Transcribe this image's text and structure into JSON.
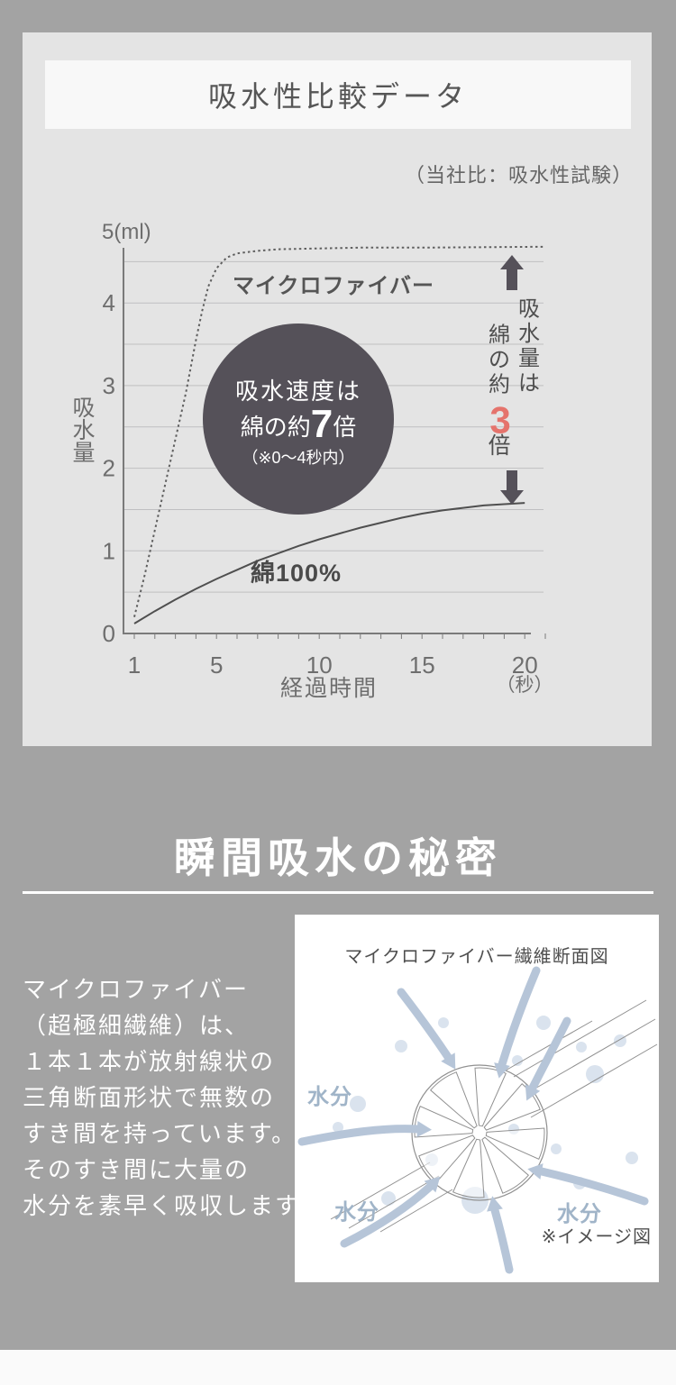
{
  "page": {
    "bg": "#a3a3a3",
    "panel_bg": "#e4e4e4",
    "card_bg": "#f8f8f8",
    "accent_red": "#e5736c",
    "dark_circle": "#555159",
    "water_blue": "#a0b4c8"
  },
  "section1": {
    "title": "吸水性比較データ",
    "note": "（当社比：吸水性試験）"
  },
  "chart_data": {
    "type": "line",
    "title": "吸水性比較データ",
    "subtitle": "（当社比：吸水性試験）",
    "xlabel": "経過時間",
    "xunit": "（秒）",
    "ylabel": "吸水量",
    "y_top_label": "5(ml)",
    "xlim": [
      1,
      20
    ],
    "ylim": [
      0,
      4.7
    ],
    "xticks": [
      1,
      5,
      10,
      15,
      20
    ],
    "yticks": [
      4,
      3,
      2,
      1,
      0
    ],
    "grid": {
      "on": true,
      "horizontal_step": 0.5,
      "grid_max": 4.5
    },
    "legend_position": "inline-labels",
    "series": [
      {
        "name": "マイクロファイバー",
        "style": "dotted",
        "points": [
          [
            1,
            0.2
          ],
          [
            1.5,
            0.7
          ],
          [
            2,
            1.25
          ],
          [
            2.5,
            1.8
          ],
          [
            3,
            2.35
          ],
          [
            3.5,
            2.9
          ],
          [
            4,
            3.55
          ],
          [
            4.3,
            3.9
          ],
          [
            4.6,
            4.2
          ],
          [
            5,
            4.42
          ],
          [
            5.5,
            4.55
          ],
          [
            6,
            4.6
          ],
          [
            7,
            4.63
          ],
          [
            8,
            4.65
          ],
          [
            10,
            4.66
          ],
          [
            12,
            4.67
          ],
          [
            15,
            4.67
          ],
          [
            18,
            4.675
          ],
          [
            21,
            4.68
          ]
        ]
      },
      {
        "name": "綿100%",
        "style": "solid",
        "points": [
          [
            1,
            0.12
          ],
          [
            2,
            0.27
          ],
          [
            3,
            0.41
          ],
          [
            4,
            0.54
          ],
          [
            5,
            0.66
          ],
          [
            6,
            0.77
          ],
          [
            7,
            0.88
          ],
          [
            8,
            0.97
          ],
          [
            9,
            1.06
          ],
          [
            10,
            1.14
          ],
          [
            11,
            1.21
          ],
          [
            12,
            1.28
          ],
          [
            13,
            1.34
          ],
          [
            14,
            1.4
          ],
          [
            15,
            1.45
          ],
          [
            16,
            1.49
          ],
          [
            17,
            1.52
          ],
          [
            18,
            1.55
          ],
          [
            19,
            1.565
          ],
          [
            20,
            1.58
          ]
        ]
      }
    ],
    "annotations": {
      "speed_circle": {
        "line1": "吸水速度は",
        "line2_pre": "綿の約",
        "line2_big": "7",
        "line2_post": "倍",
        "line3": "（※0〜4秒内）"
      },
      "amount_vertical": {
        "col_right": "吸水量は",
        "col_left": "綿の約",
        "big": "3",
        "suffix": "倍"
      }
    }
  },
  "section2": {
    "title": "瞬間吸水の秘密",
    "lines": [
      "マイクロファイバー",
      "（超極細繊維）は、",
      "１本１本が放射線状の",
      "三角断面形状で無数の",
      "すき間を持っています。",
      "そのすき間に大量の",
      "水分を素早く吸収します。"
    ],
    "diagram": {
      "title": "マイクロファイバー繊維断面図",
      "water_label": "水分",
      "caption": "※イメージ図"
    }
  }
}
